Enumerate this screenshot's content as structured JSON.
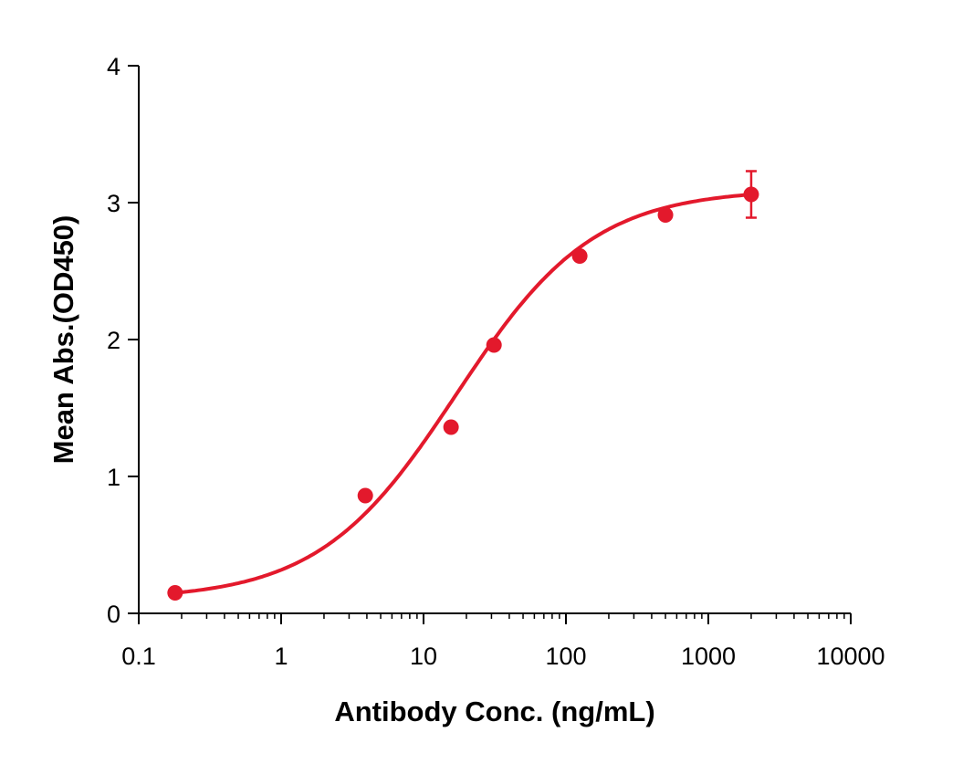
{
  "chart_data": {
    "type": "scatter",
    "xlabel": "Antibody Conc. (ng/mL)",
    "ylabel": "Mean Abs.(OD450)",
    "xscale": "log",
    "xlim": [
      0.1,
      10000
    ],
    "ylim": [
      0,
      4
    ],
    "xticks": [
      "0.1",
      "1",
      "10",
      "100",
      "1000",
      "10000"
    ],
    "yticks": [
      "0",
      "1",
      "2",
      "3",
      "4"
    ],
    "grid": false,
    "legend": "none",
    "fit_curve": "sigmoidal (4PL)",
    "color": "#e3192c",
    "points": [
      {
        "x": 0.18,
        "y": 0.15
      },
      {
        "x": 3.9,
        "y": 0.86
      },
      {
        "x": 15.6,
        "y": 1.36
      },
      {
        "x": 31.25,
        "y": 1.96
      },
      {
        "x": 125,
        "y": 2.61
      },
      {
        "x": 500,
        "y": 2.91
      },
      {
        "x": 2000,
        "y": 3.06,
        "err": 0.17
      }
    ]
  }
}
